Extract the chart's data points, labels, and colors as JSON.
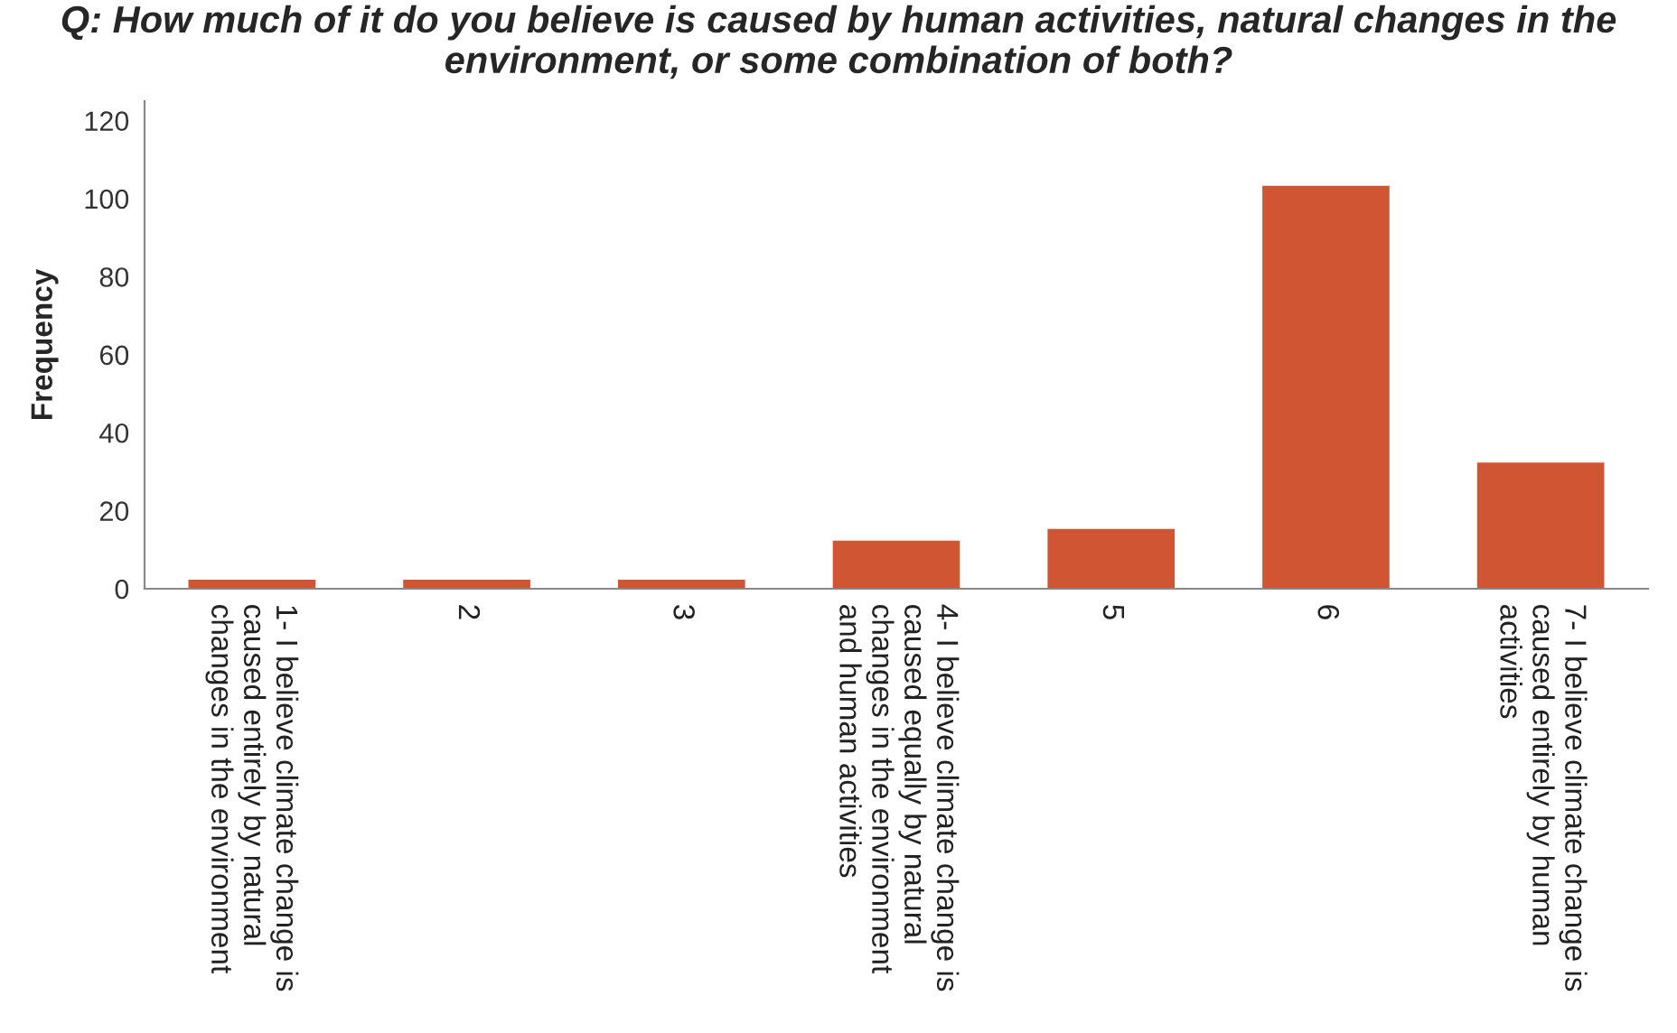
{
  "chart_data": {
    "type": "bar",
    "title": "Q: How much of it do you believe is caused by human activities, natural changes in the environment, or some combination of both?",
    "ylabel": "Frequency",
    "categories": [
      "1- I believe climate change is\ncaused entirely by natural\nchanges in the environment",
      "2",
      "3",
      "4- I believe climate change is\ncaused equally by natural\nchanges in the environment\nand human activities",
      "5",
      "6",
      "7- I believe climate change is\ncaused entirely by human\nactivities"
    ],
    "values": [
      2,
      2,
      2,
      12,
      15,
      103,
      32
    ],
    "color": "#d05533",
    "ylim": [
      0,
      125
    ],
    "yticks": [
      0,
      20,
      40,
      60,
      80,
      100,
      120
    ],
    "grid": false,
    "legend": false
  }
}
